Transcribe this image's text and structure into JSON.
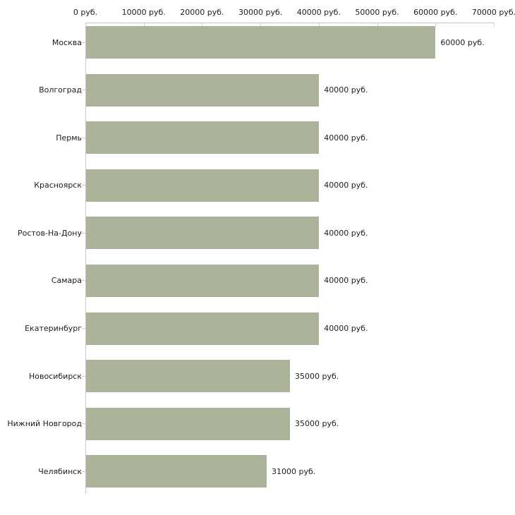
{
  "chart_data": {
    "type": "bar",
    "orientation": "horizontal",
    "title": "",
    "xlabel": "",
    "ylabel": "",
    "unit": "руб.",
    "categories": [
      "Москва",
      "Волгоград",
      "Пермь",
      "Красноярск",
      "Ростов-На-Дону",
      "Самара",
      "Екатеринбург",
      "Новосибирск",
      "Нижний Новгород",
      "Челябинск"
    ],
    "values": [
      60000,
      40000,
      40000,
      40000,
      40000,
      40000,
      40000,
      35000,
      35000,
      31000
    ],
    "value_labels": [
      "60000 руб.",
      "40000 руб.",
      "40000 руб.",
      "40000 руб.",
      "40000 руб.",
      "40000 руб.",
      "40000 руб.",
      "35000 руб.",
      "35000 руб.",
      "31000 руб."
    ],
    "xlim": [
      0,
      70000
    ],
    "tick_step": 10000,
    "tick_labels": [
      "0 руб.",
      "10000 руб.",
      "20000 руб.",
      "30000 руб.",
      "40000 руб.",
      "50000 руб.",
      "60000 руб.",
      "70000 руб."
    ],
    "grid": false,
    "legend": false,
    "bar_color": "#abb39a",
    "axis_color": "#c6c6c6",
    "tick_color": "#cfcfc0",
    "text_color": "#1c1c1c",
    "background_color": "#ffffff"
  }
}
